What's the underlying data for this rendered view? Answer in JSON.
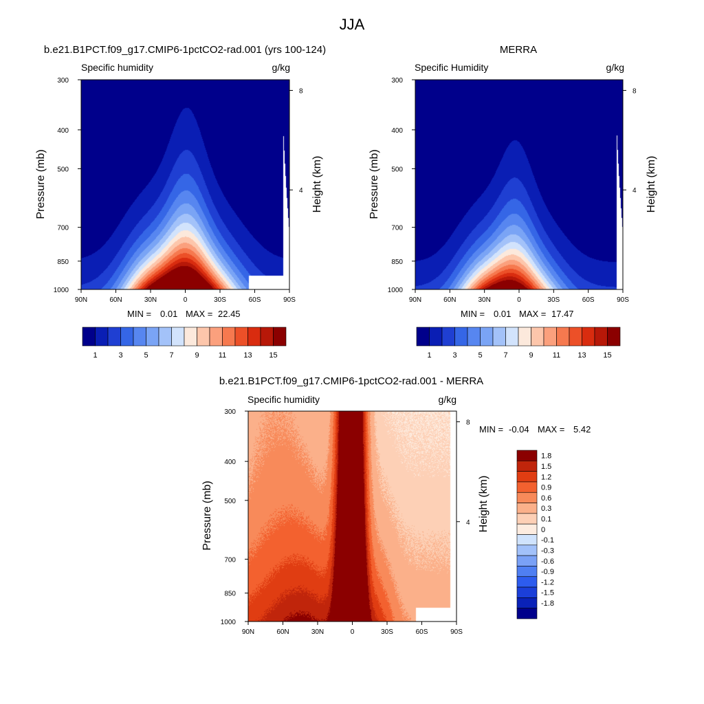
{
  "figure": {
    "title": "JJA"
  },
  "colormap": [
    "#00008b",
    "#0a1eb4",
    "#1f3fd2",
    "#3566e6",
    "#5786f0",
    "#7aa4f5",
    "#a3c2f9",
    "#d2e3fc",
    "#fce9dc",
    "#fdc6ab",
    "#fba07d",
    "#f6794f",
    "#ec5028",
    "#d92c0f",
    "#b71808",
    "#8b0000"
  ],
  "diff_colormap": [
    "#00008b",
    "#0a22b8",
    "#1b3fd9",
    "#2d5cee",
    "#4f7ff2",
    "#7aa1f6",
    "#a2c1fa",
    "#d0e3fd",
    "#fdece0",
    "#fdd0b6",
    "#fbb08a",
    "#f88a5a",
    "#f3612f",
    "#e03d12",
    "#c0250b",
    "#8b0000"
  ],
  "chart_data": [
    {
      "id": "model",
      "type": "heatmap",
      "title": "b.e21.B1PCT.f09_g17.CMIP6-1pctCO2-rad.001 (yrs 100-124)",
      "left_label": "Specific humidity",
      "right_label": "g/kg",
      "xlabel": "",
      "ylabel": "Pressure (mb)",
      "ylabel_right": "Height (km)",
      "x_ticks": [
        "90N",
        "60N",
        "30N",
        "0",
        "30S",
        "60S",
        "90S"
      ],
      "y_ticks": [
        "300",
        "400",
        "500",
        "700",
        "850",
        "1000"
      ],
      "y2_ticks": [
        "8",
        "4"
      ],
      "min_label": "MIN =",
      "min_value": "0.01",
      "max_label": "MAX =",
      "max_value": "22.45",
      "levels": [
        1,
        2,
        3,
        4,
        5,
        6,
        7,
        8,
        9,
        10,
        11,
        12,
        13,
        14,
        15
      ],
      "colorbar_labels": [
        "1",
        "3",
        "5",
        "7",
        "9",
        "11",
        "13",
        "15"
      ],
      "missing_region": "surface below ~925 mb from 55S to 85S",
      "peak": {
        "lat": 0,
        "value": 22.45
      }
    },
    {
      "id": "obs",
      "type": "heatmap",
      "title": "MERRA",
      "left_label": "Specific Humidity",
      "right_label": "g/kg",
      "xlabel": "",
      "ylabel": "Pressure (mb)",
      "ylabel_right": "Height (km)",
      "x_ticks": [
        "90N",
        "60N",
        "30N",
        "0",
        "30S",
        "60S",
        "90S"
      ],
      "y_ticks": [
        "300",
        "400",
        "500",
        "700",
        "850",
        "1000"
      ],
      "y2_ticks": [
        "8",
        "4"
      ],
      "min_label": "MIN =",
      "min_value": "0.01",
      "max_label": "MAX =",
      "max_value": "17.47",
      "levels": [
        1,
        2,
        3,
        4,
        5,
        6,
        7,
        8,
        9,
        10,
        11,
        12,
        13,
        14,
        15
      ],
      "colorbar_labels": [
        "1",
        "3",
        "5",
        "7",
        "9",
        "11",
        "13",
        "15"
      ],
      "peak": {
        "lat": 10,
        "value": 17.47
      }
    },
    {
      "id": "diff",
      "type": "heatmap",
      "title": "b.e21.B1PCT.f09_g17.CMIP6-1pctCO2-rad.001 - MERRA",
      "left_label": "Specific humidity",
      "right_label": "g/kg",
      "xlabel": "",
      "ylabel": "Pressure (mb)",
      "ylabel_right": "Height (km)",
      "x_ticks": [
        "90N",
        "60N",
        "30N",
        "0",
        "30S",
        "60S",
        "90S"
      ],
      "y_ticks": [
        "300",
        "400",
        "500",
        "700",
        "850",
        "1000"
      ],
      "y2_ticks": [
        "8",
        "4"
      ],
      "min_label": "MIN =",
      "min_value": "-0.04",
      "max_label": "MAX =",
      "max_value": "5.42",
      "levels": [
        -1.8,
        -1.5,
        -1.2,
        -0.9,
        -0.6,
        -0.3,
        -0.1,
        0,
        0.1,
        0.3,
        0.6,
        0.9,
        1.2,
        1.5,
        1.8
      ],
      "colorbar_labels": [
        "1.8",
        "1.5",
        "1.2",
        "0.9",
        "0.6",
        "0.3",
        "0.1",
        "0",
        "-0.1",
        "-0.3",
        "-0.6",
        "-0.9",
        "-1.2",
        "-1.5",
        "-1.8"
      ],
      "missing_region": "surface below ~925 mb from 55S to 85S"
    }
  ]
}
